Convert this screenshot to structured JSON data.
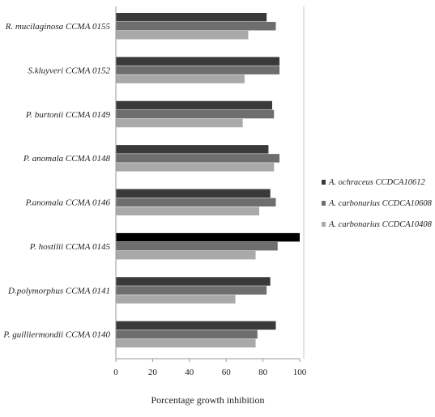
{
  "chart_data": {
    "type": "bar",
    "orientation": "horizontal",
    "categories": [
      "R. mucilaginosa CCMA 0155",
      "S.kluyveri CCMA 0152",
      "P. burtonii CCMA 0149",
      "P. anomala CCMA 0148",
      "P.anomala CCMA 0146",
      "P. hostilii CCMA 0145",
      "D.polymorphus CCMA 0141",
      "P. guilliermondii CCMA 0140"
    ],
    "series": [
      {
        "name": "A. ochraceus CCDCA10612",
        "color": "#3a3a3a",
        "values": [
          82,
          89,
          85,
          83,
          84,
          100,
          84,
          87
        ]
      },
      {
        "name": "A. carbonarius CCDCA10608",
        "color": "#6e6e6e",
        "values": [
          87,
          89,
          86,
          89,
          87,
          88,
          82,
          77
        ]
      },
      {
        "name": "A. carbonarius CCDCA10408",
        "color": "#a9a9a9",
        "values": [
          72,
          70,
          69,
          86,
          78,
          76,
          65,
          76
        ]
      }
    ],
    "highlight": {
      "category_index": 5,
      "series_index": 0,
      "color": "#000000"
    },
    "xlabel": "Porcentage growth inhibition",
    "xlim": [
      0,
      100
    ],
    "xticks": [
      0,
      20,
      40,
      60,
      80,
      100
    ],
    "legend_position": "right",
    "grid": false
  }
}
